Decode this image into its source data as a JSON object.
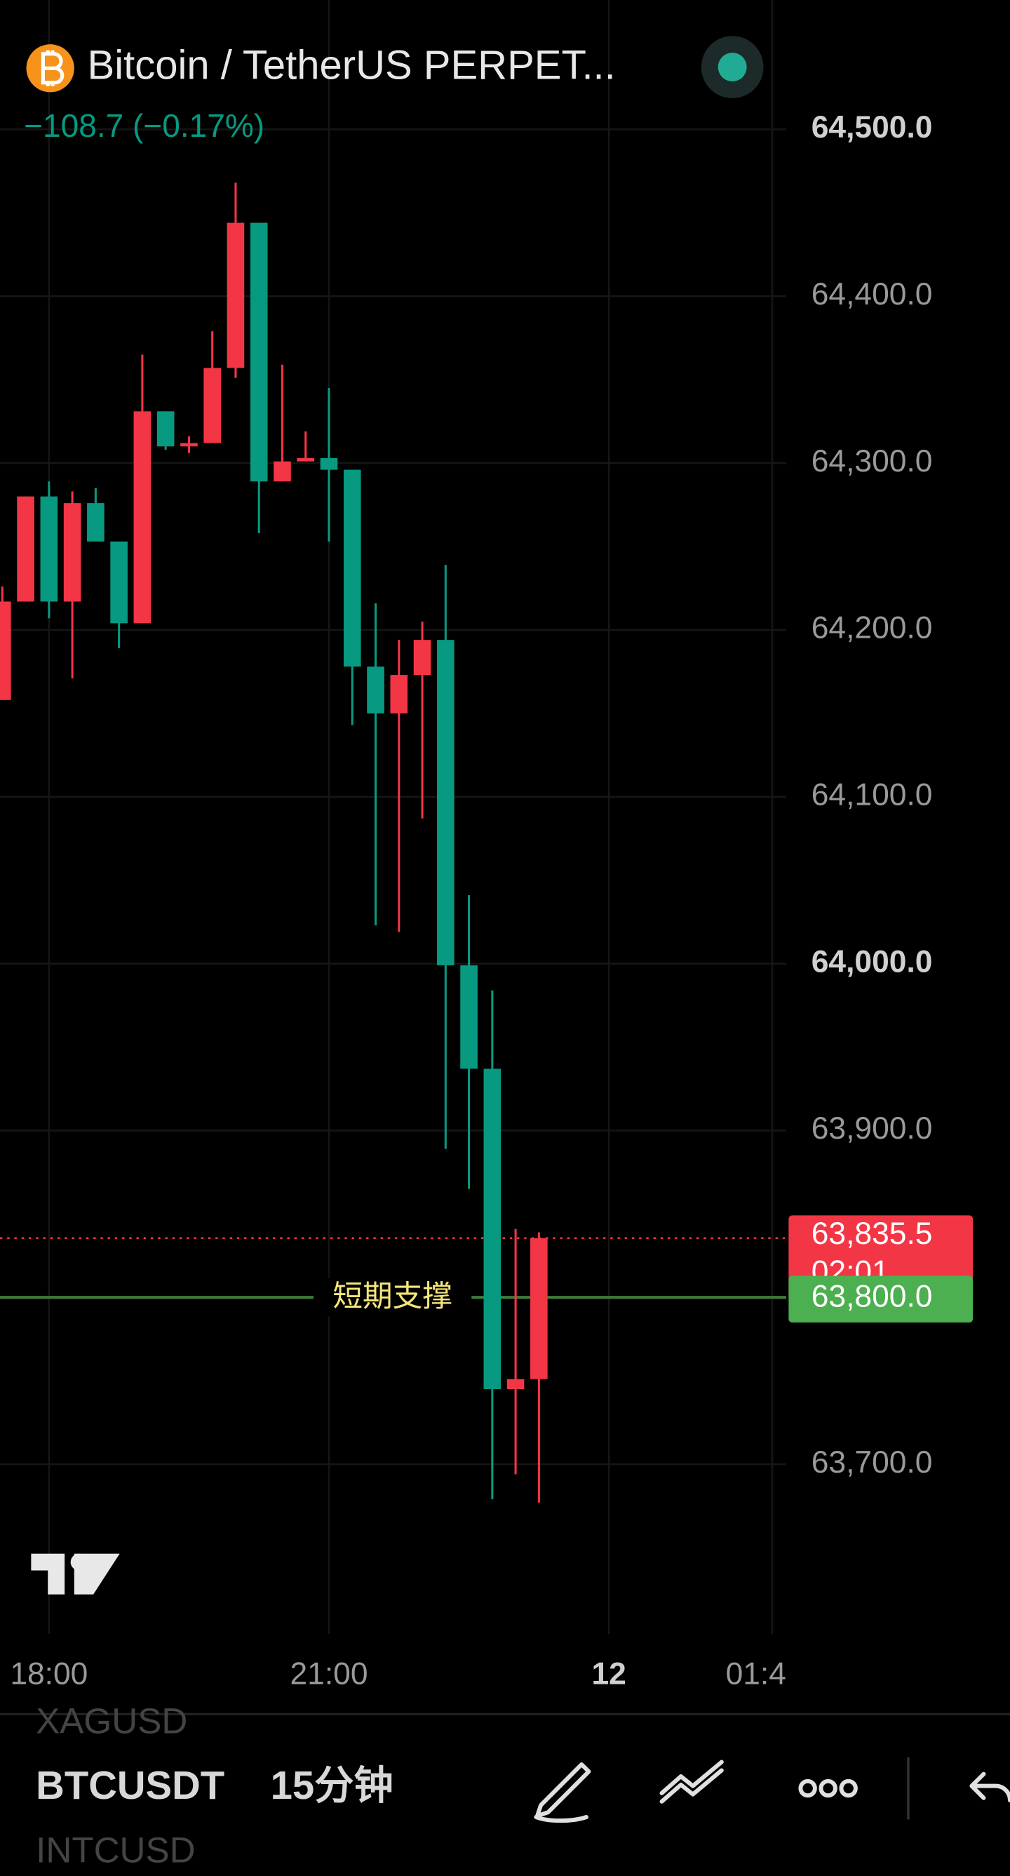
{
  "header": {
    "title": "Bitcoin / TetherUS PERPET...",
    "change": "−108.7 (−0.17%)"
  },
  "chart_data": {
    "type": "candlestick",
    "x": [
      0,
      1,
      2,
      3,
      4,
      5,
      6,
      7,
      8,
      9,
      10,
      11,
      12,
      13,
      14,
      15,
      16,
      17,
      18,
      19,
      20,
      21,
      22,
      23
    ],
    "open": [
      64158,
      64217,
      64280,
      64217,
      64276,
      64253,
      64204,
      64331,
      64310,
      64312,
      64357,
      64444,
      64289,
      64301,
      64303,
      64296,
      64178,
      64150,
      64173,
      64194,
      63999,
      63937,
      63745,
      63751
    ],
    "high": [
      64226,
      64280,
      64289,
      64283,
      64285,
      64253,
      64365,
      64331,
      64316,
      64379,
      64468,
      64444,
      64359,
      64319,
      64345,
      64296,
      64216,
      64194,
      64205,
      64239,
      64041,
      63984,
      63841,
      63839
    ],
    "low": [
      64158,
      64217,
      64207,
      64171,
      64253,
      64189,
      64204,
      64308,
      64306,
      64312,
      64351,
      64258,
      64289,
      64301,
      64253,
      64143,
      64023,
      64019,
      64087,
      63889,
      63865,
      63679,
      63694,
      63677
    ],
    "close": [
      64217,
      64280,
      64217,
      64276,
      64253,
      64204,
      64331,
      64310,
      64312,
      64357,
      64444,
      64289,
      64301,
      64303,
      64296,
      64178,
      64150,
      64173,
      64194,
      63999,
      63937,
      63745,
      63751,
      63835.5
    ],
    "up_color": "#f23645",
    "down_color": "#089981",
    "xlim": [
      -0.1,
      33.6
    ],
    "xticks": [
      {
        "value": 2,
        "label": "18:00"
      },
      {
        "value": 14,
        "label": "21:00"
      },
      {
        "value": 26,
        "label": "12"
      },
      {
        "value": 33,
        "label": "01:4"
      }
    ],
    "ylim": [
      63598.3,
      64577.5
    ],
    "yticks": [
      {
        "value": 63700,
        "label": "63,700.0"
      },
      {
        "value": 63900,
        "label": "63,900.0"
      },
      {
        "value": 64000,
        "label": "64,000.0"
      },
      {
        "value": 64100,
        "label": "64,100.0"
      },
      {
        "value": 64200,
        "label": "64,200.0"
      },
      {
        "value": 64300,
        "label": "64,300.0"
      },
      {
        "value": 64400,
        "label": "64,400.0"
      },
      {
        "value": 64500,
        "label": "64,500.0"
      }
    ],
    "grid": true,
    "last_price": {
      "value": 63835.5,
      "label": "63,835.5",
      "countdown": "02:01",
      "color": "#f23645"
    },
    "support": {
      "value": 63800,
      "label": "63,800.0",
      "annotation": "短期支撑",
      "color": "#4caf50"
    }
  },
  "toolbar": {
    "symbol_above": "XAGUSD",
    "symbol": "BTCUSDT",
    "interval": "15分钟",
    "symbol_below": "INTCUSD"
  }
}
